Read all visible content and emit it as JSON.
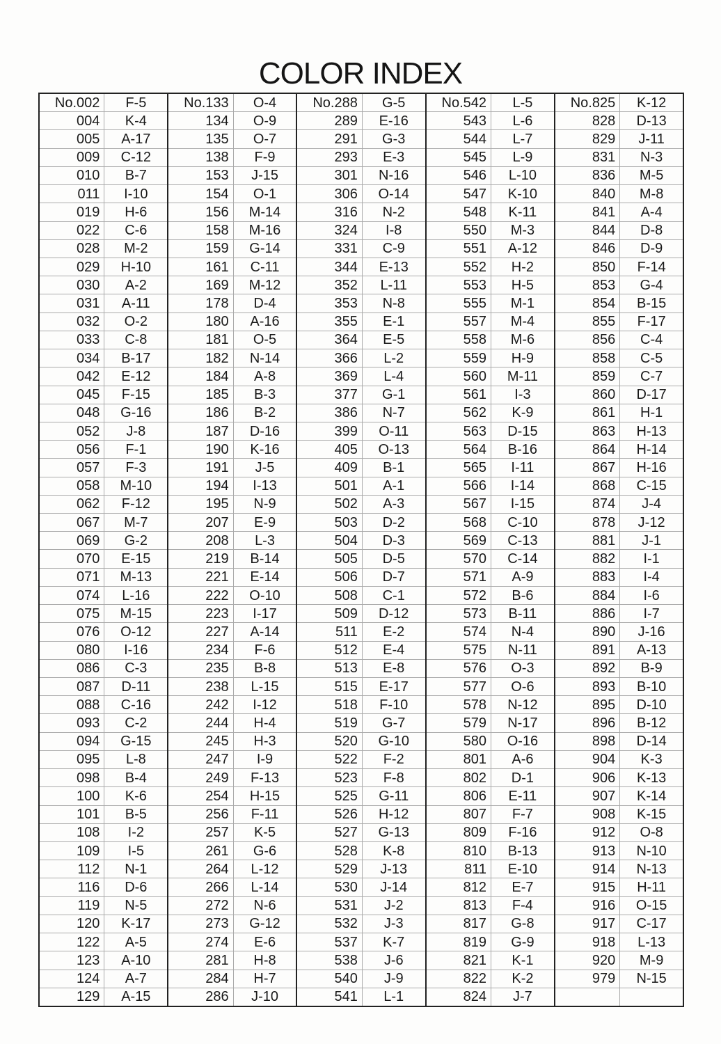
{
  "title": "COLOR INDEX",
  "groups": [
    [
      [
        "No.002",
        "F-5"
      ],
      [
        "004",
        "K-4"
      ],
      [
        "005",
        "A-17"
      ],
      [
        "009",
        "C-12"
      ],
      [
        "010",
        "B-7"
      ],
      [
        "011",
        "I-10"
      ],
      [
        "019",
        "H-6"
      ],
      [
        "022",
        "C-6"
      ],
      [
        "028",
        "M-2"
      ],
      [
        "029",
        "H-10"
      ],
      [
        "030",
        "A-2"
      ],
      [
        "031",
        "A-11"
      ],
      [
        "032",
        "O-2"
      ],
      [
        "033",
        "C-8"
      ],
      [
        "034",
        "B-17"
      ],
      [
        "042",
        "E-12"
      ],
      [
        "045",
        "F-15"
      ],
      [
        "048",
        "G-16"
      ],
      [
        "052",
        "J-8"
      ],
      [
        "056",
        "F-1"
      ],
      [
        "057",
        "F-3"
      ],
      [
        "058",
        "M-10"
      ],
      [
        "062",
        "F-12"
      ],
      [
        "067",
        "M-7"
      ],
      [
        "069",
        "G-2"
      ],
      [
        "070",
        "E-15"
      ],
      [
        "071",
        "M-13"
      ],
      [
        "074",
        "L-16"
      ],
      [
        "075",
        "M-15"
      ],
      [
        "076",
        "O-12"
      ],
      [
        "080",
        "I-16"
      ],
      [
        "086",
        "C-3"
      ],
      [
        "087",
        "D-11"
      ],
      [
        "088",
        "C-16"
      ],
      [
        "093",
        "C-2"
      ],
      [
        "094",
        "G-15"
      ],
      [
        "095",
        "L-8"
      ],
      [
        "098",
        "B-4"
      ],
      [
        "100",
        "K-6"
      ],
      [
        "101",
        "B-5"
      ],
      [
        "108",
        "I-2"
      ],
      [
        "109",
        "I-5"
      ],
      [
        "112",
        "N-1"
      ],
      [
        "116",
        "D-6"
      ],
      [
        "119",
        "N-5"
      ],
      [
        "120",
        "K-17"
      ],
      [
        "122",
        "A-5"
      ],
      [
        "123",
        "A-10"
      ],
      [
        "124",
        "A-7"
      ],
      [
        "129",
        "A-15"
      ]
    ],
    [
      [
        "No.133",
        "O-4"
      ],
      [
        "134",
        "O-9"
      ],
      [
        "135",
        "O-7"
      ],
      [
        "138",
        "F-9"
      ],
      [
        "153",
        "J-15"
      ],
      [
        "154",
        "O-1"
      ],
      [
        "156",
        "M-14"
      ],
      [
        "158",
        "M-16"
      ],
      [
        "159",
        "G-14"
      ],
      [
        "161",
        "C-11"
      ],
      [
        "169",
        "M-12"
      ],
      [
        "178",
        "D-4"
      ],
      [
        "180",
        "A-16"
      ],
      [
        "181",
        "O-5"
      ],
      [
        "182",
        "N-14"
      ],
      [
        "184",
        "A-8"
      ],
      [
        "185",
        "B-3"
      ],
      [
        "186",
        "B-2"
      ],
      [
        "187",
        "D-16"
      ],
      [
        "190",
        "K-16"
      ],
      [
        "191",
        "J-5"
      ],
      [
        "194",
        "I-13"
      ],
      [
        "195",
        "N-9"
      ],
      [
        "207",
        "E-9"
      ],
      [
        "208",
        "L-3"
      ],
      [
        "219",
        "B-14"
      ],
      [
        "221",
        "E-14"
      ],
      [
        "222",
        "O-10"
      ],
      [
        "223",
        "I-17"
      ],
      [
        "227",
        "A-14"
      ],
      [
        "234",
        "F-6"
      ],
      [
        "235",
        "B-8"
      ],
      [
        "238",
        "L-15"
      ],
      [
        "242",
        "I-12"
      ],
      [
        "244",
        "H-4"
      ],
      [
        "245",
        "H-3"
      ],
      [
        "247",
        "I-9"
      ],
      [
        "249",
        "F-13"
      ],
      [
        "254",
        "H-15"
      ],
      [
        "256",
        "F-11"
      ],
      [
        "257",
        "K-5"
      ],
      [
        "261",
        "G-6"
      ],
      [
        "264",
        "L-12"
      ],
      [
        "266",
        "L-14"
      ],
      [
        "272",
        "N-6"
      ],
      [
        "273",
        "G-12"
      ],
      [
        "274",
        "E-6"
      ],
      [
        "281",
        "H-8"
      ],
      [
        "284",
        "H-7"
      ],
      [
        "286",
        "J-10"
      ]
    ],
    [
      [
        "No.288",
        "G-5"
      ],
      [
        "289",
        "E-16"
      ],
      [
        "291",
        "G-3"
      ],
      [
        "293",
        "E-3"
      ],
      [
        "301",
        "N-16"
      ],
      [
        "306",
        "O-14"
      ],
      [
        "316",
        "N-2"
      ],
      [
        "324",
        "I-8"
      ],
      [
        "331",
        "C-9"
      ],
      [
        "344",
        "E-13"
      ],
      [
        "352",
        "L-11"
      ],
      [
        "353",
        "N-8"
      ],
      [
        "355",
        "E-1"
      ],
      [
        "364",
        "E-5"
      ],
      [
        "366",
        "L-2"
      ],
      [
        "369",
        "L-4"
      ],
      [
        "377",
        "G-1"
      ],
      [
        "386",
        "N-7"
      ],
      [
        "399",
        "O-11"
      ],
      [
        "405",
        "O-13"
      ],
      [
        "409",
        "B-1"
      ],
      [
        "501",
        "A-1"
      ],
      [
        "502",
        "A-3"
      ],
      [
        "503",
        "D-2"
      ],
      [
        "504",
        "D-3"
      ],
      [
        "505",
        "D-5"
      ],
      [
        "506",
        "D-7"
      ],
      [
        "508",
        "C-1"
      ],
      [
        "509",
        "D-12"
      ],
      [
        "511",
        "E-2"
      ],
      [
        "512",
        "E-4"
      ],
      [
        "513",
        "E-8"
      ],
      [
        "515",
        "E-17"
      ],
      [
        "518",
        "F-10"
      ],
      [
        "519",
        "G-7"
      ],
      [
        "520",
        "G-10"
      ],
      [
        "522",
        "F-2"
      ],
      [
        "523",
        "F-8"
      ],
      [
        "525",
        "G-11"
      ],
      [
        "526",
        "H-12"
      ],
      [
        "527",
        "G-13"
      ],
      [
        "528",
        "K-8"
      ],
      [
        "529",
        "J-13"
      ],
      [
        "530",
        "J-14"
      ],
      [
        "531",
        "J-2"
      ],
      [
        "532",
        "J-3"
      ],
      [
        "537",
        "K-7"
      ],
      [
        "538",
        "J-6"
      ],
      [
        "540",
        "J-9"
      ],
      [
        "541",
        "L-1"
      ]
    ],
    [
      [
        "No.542",
        "L-5"
      ],
      [
        "543",
        "L-6"
      ],
      [
        "544",
        "L-7"
      ],
      [
        "545",
        "L-9"
      ],
      [
        "546",
        "L-10"
      ],
      [
        "547",
        "K-10"
      ],
      [
        "548",
        "K-11"
      ],
      [
        "550",
        "M-3"
      ],
      [
        "551",
        "A-12"
      ],
      [
        "552",
        "H-2"
      ],
      [
        "553",
        "H-5"
      ],
      [
        "555",
        "M-1"
      ],
      [
        "557",
        "M-4"
      ],
      [
        "558",
        "M-6"
      ],
      [
        "559",
        "H-9"
      ],
      [
        "560",
        "M-11"
      ],
      [
        "561",
        "I-3"
      ],
      [
        "562",
        "K-9"
      ],
      [
        "563",
        "D-15"
      ],
      [
        "564",
        "B-16"
      ],
      [
        "565",
        "I-11"
      ],
      [
        "566",
        "I-14"
      ],
      [
        "567",
        "I-15"
      ],
      [
        "568",
        "C-10"
      ],
      [
        "569",
        "C-13"
      ],
      [
        "570",
        "C-14"
      ],
      [
        "571",
        "A-9"
      ],
      [
        "572",
        "B-6"
      ],
      [
        "573",
        "B-11"
      ],
      [
        "574",
        "N-4"
      ],
      [
        "575",
        "N-11"
      ],
      [
        "576",
        "O-3"
      ],
      [
        "577",
        "O-6"
      ],
      [
        "578",
        "N-12"
      ],
      [
        "579",
        "N-17"
      ],
      [
        "580",
        "O-16"
      ],
      [
        "801",
        "A-6"
      ],
      [
        "802",
        "D-1"
      ],
      [
        "806",
        "E-11"
      ],
      [
        "807",
        "F-7"
      ],
      [
        "809",
        "F-16"
      ],
      [
        "810",
        "B-13"
      ],
      [
        "811",
        "E-10"
      ],
      [
        "812",
        "E-7"
      ],
      [
        "813",
        "F-4"
      ],
      [
        "817",
        "G-8"
      ],
      [
        "819",
        "G-9"
      ],
      [
        "821",
        "K-1"
      ],
      [
        "822",
        "K-2"
      ],
      [
        "824",
        "J-7"
      ]
    ],
    [
      [
        "No.825",
        "K-12"
      ],
      [
        "828",
        "D-13"
      ],
      [
        "829",
        "J-11"
      ],
      [
        "831",
        "N-3"
      ],
      [
        "836",
        "M-5"
      ],
      [
        "840",
        "M-8"
      ],
      [
        "841",
        "A-4"
      ],
      [
        "844",
        "D-8"
      ],
      [
        "846",
        "D-9"
      ],
      [
        "850",
        "F-14"
      ],
      [
        "853",
        "G-4"
      ],
      [
        "854",
        "B-15"
      ],
      [
        "855",
        "F-17"
      ],
      [
        "856",
        "C-4"
      ],
      [
        "858",
        "C-5"
      ],
      [
        "859",
        "C-7"
      ],
      [
        "860",
        "D-17"
      ],
      [
        "861",
        "H-1"
      ],
      [
        "863",
        "H-13"
      ],
      [
        "864",
        "H-14"
      ],
      [
        "867",
        "H-16"
      ],
      [
        "868",
        "C-15"
      ],
      [
        "874",
        "J-4"
      ],
      [
        "878",
        "J-12"
      ],
      [
        "881",
        "J-1"
      ],
      [
        "882",
        "I-1"
      ],
      [
        "883",
        "I-4"
      ],
      [
        "884",
        "I-6"
      ],
      [
        "886",
        "I-7"
      ],
      [
        "890",
        "J-16"
      ],
      [
        "891",
        "A-13"
      ],
      [
        "892",
        "B-9"
      ],
      [
        "893",
        "B-10"
      ],
      [
        "895",
        "D-10"
      ],
      [
        "896",
        "B-12"
      ],
      [
        "898",
        "D-14"
      ],
      [
        "904",
        "K-3"
      ],
      [
        "906",
        "K-13"
      ],
      [
        "907",
        "K-14"
      ],
      [
        "908",
        "K-15"
      ],
      [
        "912",
        "O-8"
      ],
      [
        "913",
        "N-10"
      ],
      [
        "914",
        "N-13"
      ],
      [
        "915",
        "H-11"
      ],
      [
        "916",
        "O-15"
      ],
      [
        "917",
        "C-17"
      ],
      [
        "918",
        "L-13"
      ],
      [
        "920",
        "M-9"
      ],
      [
        "979",
        "N-15"
      ],
      [
        "",
        ""
      ]
    ]
  ]
}
